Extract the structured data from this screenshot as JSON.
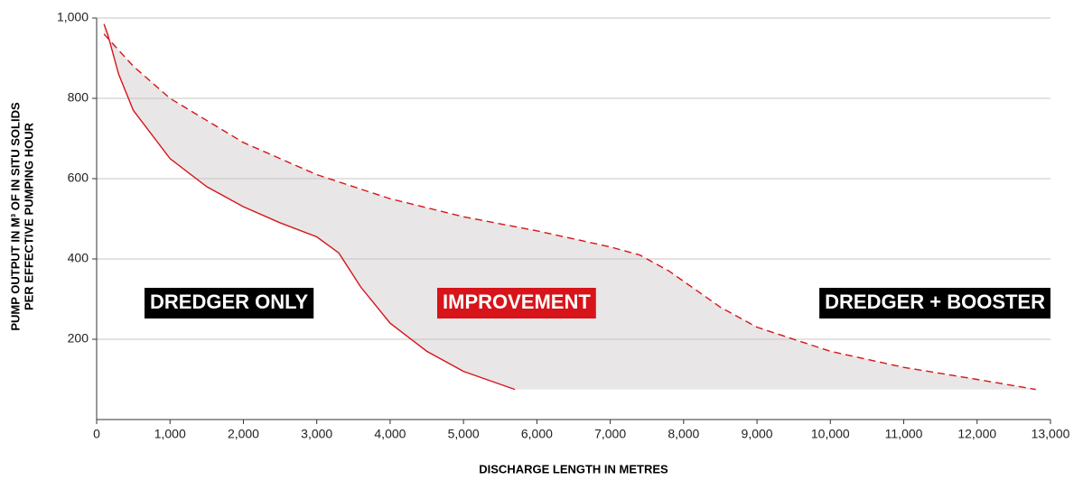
{
  "chart_data": {
    "type": "line",
    "x_label": "DISCHARGE LENGTH IN METRES",
    "y_label": [
      "PUMP OUTPUT IN M³ OF IN SITU SOLIDS",
      "PER EFFECTIVE PUMPING HOUR"
    ],
    "annotation": "IMPROVEMENT",
    "series": [
      {
        "name": "DREDGER ONLY",
        "color": "#d7141a",
        "dashed": false,
        "x": [
          100,
          150,
          300,
          500,
          1000,
          1500,
          2000,
          2500,
          3000,
          3300,
          3600,
          4000,
          4500,
          5000,
          5700
        ],
        "values": [
          985,
          960,
          860,
          770,
          650,
          580,
          530,
          490,
          455,
          415,
          330,
          240,
          170,
          120,
          75
        ]
      },
      {
        "name": "DREDGER + BOOSTER",
        "color": "#d7141a",
        "dashed": true,
        "x": [
          100,
          500,
          1000,
          2000,
          3000,
          4000,
          5000,
          6000,
          7000,
          7400,
          7800,
          8500,
          9000,
          10000,
          11000,
          12000,
          12800
        ],
        "values": [
          960,
          880,
          800,
          690,
          610,
          550,
          505,
          470,
          430,
          410,
          370,
          280,
          230,
          170,
          130,
          100,
          75
        ]
      }
    ],
    "fill_color": "#e8e6e6",
    "annotation_color": "#d7141a",
    "label_color": "#000000",
    "xlim": [
      0,
      13000
    ],
    "xticks": [
      0,
      {
        "value": 1000,
        "label": "1,000"
      },
      {
        "value": 2000,
        "label": "2,000"
      },
      {
        "value": 3000,
        "label": "3,000"
      },
      {
        "value": 4000,
        "label": "4,000"
      },
      {
        "value": 5000,
        "label": "5,000"
      },
      {
        "value": 6000,
        "label": "6,000"
      },
      {
        "value": 7000,
        "label": "7,000"
      },
      {
        "value": 8000,
        "label": "8,000"
      },
      {
        "value": 9000,
        "label": "9,000"
      },
      {
        "value": 10000,
        "label": "10,000"
      },
      {
        "value": 11000,
        "label": "11,000"
      },
      {
        "value": 12000,
        "label": "12,000"
      },
      {
        "value": 13000,
        "label": "13,000"
      }
    ],
    "ylim": [
      0,
      1000
    ],
    "yticks": [
      200,
      400,
      600,
      800,
      {
        "value": 1000,
        "label": "1,000"
      }
    ],
    "grid": true
  }
}
